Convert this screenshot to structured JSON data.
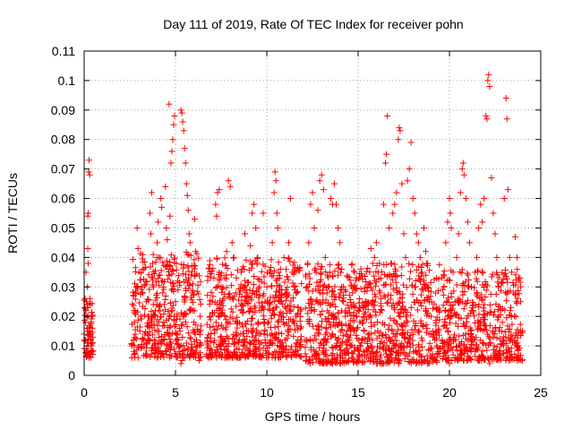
{
  "chart_data": {
    "type": "scatter",
    "title": "Day 111 of 2019, Rate Of TEC Index for receiver pohn",
    "xlabel": "GPS time / hours",
    "ylabel": "ROTI / TECUs",
    "xlim": [
      0,
      25
    ],
    "ylim": [
      0,
      0.11
    ],
    "xticks": [
      0,
      5,
      10,
      15,
      20,
      25
    ],
    "xtick_labels": [
      "0",
      "5",
      "10",
      "15",
      "20",
      "25"
    ],
    "yticks": [
      0,
      0.01,
      0.02,
      0.03,
      0.04,
      0.05,
      0.06,
      0.07,
      0.08,
      0.09,
      0.1,
      0.11
    ],
    "ytick_labels": [
      "0",
      "0.01",
      "0.02",
      "0.03",
      "0.04",
      "0.05",
      "0.06",
      "0.07",
      "0.08",
      "0.09",
      "0.1",
      "0.11"
    ],
    "grid": true,
    "marker": "+",
    "color": "#ff0000",
    "series": [
      {
        "name": "ROTI",
        "points": [
          [
            0.0,
            0.014
          ],
          [
            0.05,
            0.012
          ],
          [
            0.08,
            0.018
          ],
          [
            0.1,
            0.022
          ],
          [
            0.12,
            0.025
          ],
          [
            0.15,
            0.016
          ],
          [
            0.18,
            0.03
          ],
          [
            0.2,
            0.054
          ],
          [
            0.22,
            0.055
          ],
          [
            0.25,
            0.069
          ],
          [
            0.27,
            0.073
          ],
          [
            0.3,
            0.068
          ],
          [
            0.32,
            0.026
          ],
          [
            0.35,
            0.012
          ],
          [
            0.38,
            0.01
          ],
          [
            0.4,
            0.008
          ],
          [
            0.42,
            0.02
          ],
          [
            0.45,
            0.016
          ],
          [
            0.48,
            0.011
          ],
          [
            0.2,
            0.043
          ],
          [
            0.22,
            0.038
          ],
          [
            0.1,
            0.035
          ],
          [
            0.05,
            0.026
          ],
          [
            0.3,
            0.024
          ],
          [
            2.6,
            0.01
          ],
          [
            2.7,
            0.012
          ],
          [
            2.75,
            0.018
          ],
          [
            2.8,
            0.022
          ],
          [
            2.85,
            0.03
          ],
          [
            2.9,
            0.05
          ],
          [
            2.95,
            0.043
          ],
          [
            3.0,
            0.035
          ],
          [
            3.05,
            0.015
          ],
          [
            3.1,
            0.02
          ],
          [
            3.15,
            0.01
          ],
          [
            3.2,
            0.028
          ],
          [
            3.3,
            0.014
          ],
          [
            3.4,
            0.025
          ],
          [
            3.5,
            0.012
          ],
          [
            3.6,
            0.055
          ],
          [
            3.65,
            0.048
          ],
          [
            3.7,
            0.062
          ],
          [
            3.75,
            0.038
          ],
          [
            3.8,
            0.03
          ],
          [
            3.9,
            0.022
          ],
          [
            4.0,
            0.045
          ],
          [
            4.05,
            0.052
          ],
          [
            4.1,
            0.04
          ],
          [
            4.15,
            0.034
          ],
          [
            4.2,
            0.06
          ],
          [
            4.25,
            0.057
          ],
          [
            4.3,
            0.028
          ],
          [
            4.35,
            0.018
          ],
          [
            4.4,
            0.012
          ],
          [
            4.45,
            0.064
          ],
          [
            4.5,
            0.05
          ],
          [
            4.55,
            0.046
          ],
          [
            4.6,
            0.036
          ],
          [
            4.65,
            0.092
          ],
          [
            4.7,
            0.054
          ],
          [
            4.75,
            0.072
          ],
          [
            4.8,
            0.076
          ],
          [
            4.85,
            0.08
          ],
          [
            4.9,
            0.085
          ],
          [
            4.95,
            0.088
          ],
          [
            5.0,
            0.025
          ],
          [
            5.05,
            0.038
          ],
          [
            5.1,
            0.02
          ],
          [
            5.15,
            0.012
          ],
          [
            5.2,
            0.008
          ],
          [
            5.25,
            0.015
          ],
          [
            5.3,
            0.09
          ],
          [
            5.35,
            0.089
          ],
          [
            5.4,
            0.086
          ],
          [
            5.45,
            0.083
          ],
          [
            5.5,
            0.077
          ],
          [
            5.55,
            0.072
          ],
          [
            5.6,
            0.065
          ],
          [
            5.65,
            0.061
          ],
          [
            5.7,
            0.056
          ],
          [
            5.75,
            0.048
          ],
          [
            5.8,
            0.045
          ],
          [
            5.85,
            0.034
          ],
          [
            5.9,
            0.028
          ],
          [
            5.95,
            0.022
          ],
          [
            6.0,
            0.018
          ],
          [
            6.05,
            0.053
          ],
          [
            6.1,
            0.042
          ],
          [
            6.15,
            0.012
          ],
          [
            6.2,
            0.01
          ],
          [
            6.25,
            0.007
          ],
          [
            6.3,
            0.005
          ],
          [
            6.35,
            0.02
          ],
          [
            5.3,
            0.004
          ],
          [
            5.35,
            0.005
          ],
          [
            6.8,
            0.01
          ],
          [
            6.9,
            0.02
          ],
          [
            7.0,
            0.025
          ],
          [
            7.1,
            0.033
          ],
          [
            7.2,
            0.058
          ],
          [
            7.25,
            0.054
          ],
          [
            7.3,
            0.062
          ],
          [
            7.4,
            0.063
          ],
          [
            7.5,
            0.03
          ],
          [
            7.6,
            0.016
          ],
          [
            7.7,
            0.02
          ],
          [
            7.8,
            0.042
          ],
          [
            7.9,
            0.066
          ],
          [
            8.0,
            0.064
          ],
          [
            8.1,
            0.045
          ],
          [
            8.2,
            0.04
          ],
          [
            8.3,
            0.028
          ],
          [
            8.4,
            0.018
          ],
          [
            8.5,
            0.012
          ],
          [
            8.6,
            0.035
          ],
          [
            8.7,
            0.03
          ],
          [
            8.8,
            0.048
          ],
          [
            8.9,
            0.025
          ],
          [
            9.0,
            0.015
          ],
          [
            9.1,
            0.044
          ],
          [
            9.2,
            0.055
          ],
          [
            9.3,
            0.058
          ],
          [
            9.4,
            0.05
          ],
          [
            9.5,
            0.04
          ],
          [
            9.6,
            0.03
          ],
          [
            9.7,
            0.022
          ],
          [
            9.8,
            0.055
          ],
          [
            9.9,
            0.015
          ],
          [
            10.0,
            0.01
          ],
          [
            10.1,
            0.018
          ],
          [
            10.2,
            0.035
          ],
          [
            10.3,
            0.045
          ],
          [
            10.4,
            0.062
          ],
          [
            10.45,
            0.069
          ],
          [
            10.5,
            0.066
          ],
          [
            10.55,
            0.055
          ],
          [
            10.6,
            0.05
          ],
          [
            10.7,
            0.033
          ],
          [
            10.8,
            0.025
          ],
          [
            10.9,
            0.018
          ],
          [
            11.0,
            0.012
          ],
          [
            11.1,
            0.028
          ],
          [
            11.2,
            0.045
          ],
          [
            11.3,
            0.06
          ],
          [
            11.4,
            0.035
          ],
          [
            11.5,
            0.03
          ],
          [
            11.6,
            0.02
          ],
          [
            11.7,
            0.012
          ],
          [
            11.8,
            0.01
          ],
          [
            12.1,
            0.012
          ],
          [
            12.2,
            0.03
          ],
          [
            12.3,
            0.045
          ],
          [
            12.4,
            0.058
          ],
          [
            12.5,
            0.062
          ],
          [
            12.6,
            0.05
          ],
          [
            12.7,
            0.035
          ],
          [
            12.8,
            0.056
          ],
          [
            12.9,
            0.066
          ],
          [
            13.0,
            0.068
          ],
          [
            13.1,
            0.063
          ],
          [
            13.2,
            0.04
          ],
          [
            13.3,
            0.028
          ],
          [
            13.4,
            0.018
          ],
          [
            13.5,
            0.06
          ],
          [
            13.6,
            0.058
          ],
          [
            13.7,
            0.065
          ],
          [
            13.8,
            0.058
          ],
          [
            13.9,
            0.05
          ],
          [
            14.0,
            0.045
          ],
          [
            14.1,
            0.036
          ],
          [
            14.2,
            0.025
          ],
          [
            14.3,
            0.02
          ],
          [
            14.4,
            0.015
          ],
          [
            14.5,
            0.012
          ],
          [
            14.6,
            0.01
          ],
          [
            14.7,
            0.028
          ],
          [
            14.8,
            0.035
          ],
          [
            14.9,
            0.033
          ],
          [
            15.0,
            0.022
          ],
          [
            15.1,
            0.018
          ],
          [
            15.2,
            0.012
          ],
          [
            15.3,
            0.008
          ],
          [
            15.4,
            0.025
          ],
          [
            15.5,
            0.03
          ],
          [
            15.6,
            0.02
          ],
          [
            15.7,
            0.043
          ],
          [
            15.8,
            0.038
          ],
          [
            15.9,
            0.04
          ],
          [
            16.0,
            0.045
          ],
          [
            16.1,
            0.035
          ],
          [
            16.2,
            0.028
          ],
          [
            16.3,
            0.022
          ],
          [
            16.4,
            0.058
          ],
          [
            16.5,
            0.072
          ],
          [
            16.55,
            0.075
          ],
          [
            16.6,
            0.088
          ],
          [
            16.7,
            0.05
          ],
          [
            16.8,
            0.038
          ],
          [
            16.9,
            0.055
          ],
          [
            17.0,
            0.058
          ],
          [
            17.1,
            0.062
          ],
          [
            17.2,
            0.08
          ],
          [
            17.25,
            0.084
          ],
          [
            17.3,
            0.083
          ],
          [
            17.4,
            0.065
          ],
          [
            17.5,
            0.048
          ],
          [
            17.6,
            0.04
          ],
          [
            17.7,
            0.066
          ],
          [
            17.8,
            0.07
          ],
          [
            17.9,
            0.079
          ],
          [
            18.0,
            0.06
          ],
          [
            18.1,
            0.055
          ],
          [
            18.2,
            0.048
          ],
          [
            18.3,
            0.045
          ],
          [
            18.4,
            0.04
          ],
          [
            18.5,
            0.035
          ],
          [
            18.6,
            0.05
          ],
          [
            18.7,
            0.042
          ],
          [
            18.8,
            0.03
          ],
          [
            18.9,
            0.025
          ],
          [
            19.0,
            0.02
          ],
          [
            19.1,
            0.015
          ],
          [
            19.2,
            0.012
          ],
          [
            19.3,
            0.01
          ],
          [
            19.4,
            0.008
          ],
          [
            19.6,
            0.012
          ],
          [
            19.7,
            0.03
          ],
          [
            19.8,
            0.045
          ],
          [
            19.9,
            0.052
          ],
          [
            20.0,
            0.06
          ],
          [
            20.05,
            0.055
          ],
          [
            20.1,
            0.05
          ],
          [
            20.2,
            0.035
          ],
          [
            20.3,
            0.025
          ],
          [
            20.4,
            0.04
          ],
          [
            20.5,
            0.048
          ],
          [
            20.6,
            0.062
          ],
          [
            20.7,
            0.07
          ],
          [
            20.75,
            0.072
          ],
          [
            20.8,
            0.068
          ],
          [
            20.9,
            0.06
          ],
          [
            21.0,
            0.052
          ],
          [
            21.1,
            0.045
          ],
          [
            21.2,
            0.03
          ],
          [
            21.3,
            0.022
          ],
          [
            21.4,
            0.035
          ],
          [
            21.5,
            0.04
          ],
          [
            21.6,
            0.05
          ],
          [
            21.7,
            0.058
          ],
          [
            21.8,
            0.052
          ],
          [
            21.9,
            0.06
          ],
          [
            22.0,
            0.088
          ],
          [
            22.05,
            0.087
          ],
          [
            22.1,
            0.1
          ],
          [
            22.15,
            0.102
          ],
          [
            22.2,
            0.098
          ],
          [
            22.3,
            0.067
          ],
          [
            22.4,
            0.055
          ],
          [
            22.5,
            0.048
          ],
          [
            22.6,
            0.04
          ],
          [
            22.7,
            0.03
          ],
          [
            22.8,
            0.022
          ],
          [
            22.9,
            0.018
          ],
          [
            23.0,
            0.06
          ],
          [
            23.1,
            0.094
          ],
          [
            23.15,
            0.087
          ],
          [
            23.2,
            0.063
          ],
          [
            23.3,
            0.04
          ],
          [
            23.4,
            0.035
          ],
          [
            23.5,
            0.028
          ],
          [
            23.6,
            0.047
          ],
          [
            23.7,
            0.04
          ],
          [
            23.8,
            0.033
          ],
          [
            23.9,
            0.025
          ],
          [
            24.0,
            0.015
          ],
          [
            21.6,
            0.005
          ],
          [
            22.2,
            0.004
          ],
          [
            20.0,
            0.004
          ]
        ],
        "dense_bands": [
          {
            "x_from": 0.0,
            "x_to": 0.5,
            "y_from": 0.006,
            "y_to": 0.027,
            "count": 60
          },
          {
            "x_from": 2.6,
            "x_to": 6.4,
            "y_from": 0.006,
            "y_to": 0.042,
            "count": 420
          },
          {
            "x_from": 6.7,
            "x_to": 11.9,
            "y_from": 0.006,
            "y_to": 0.04,
            "count": 620
          },
          {
            "x_from": 12.1,
            "x_to": 19.5,
            "y_from": 0.004,
            "y_to": 0.038,
            "count": 860
          },
          {
            "x_from": 19.6,
            "x_to": 24.0,
            "y_from": 0.005,
            "y_to": 0.036,
            "count": 480
          }
        ]
      }
    ]
  }
}
